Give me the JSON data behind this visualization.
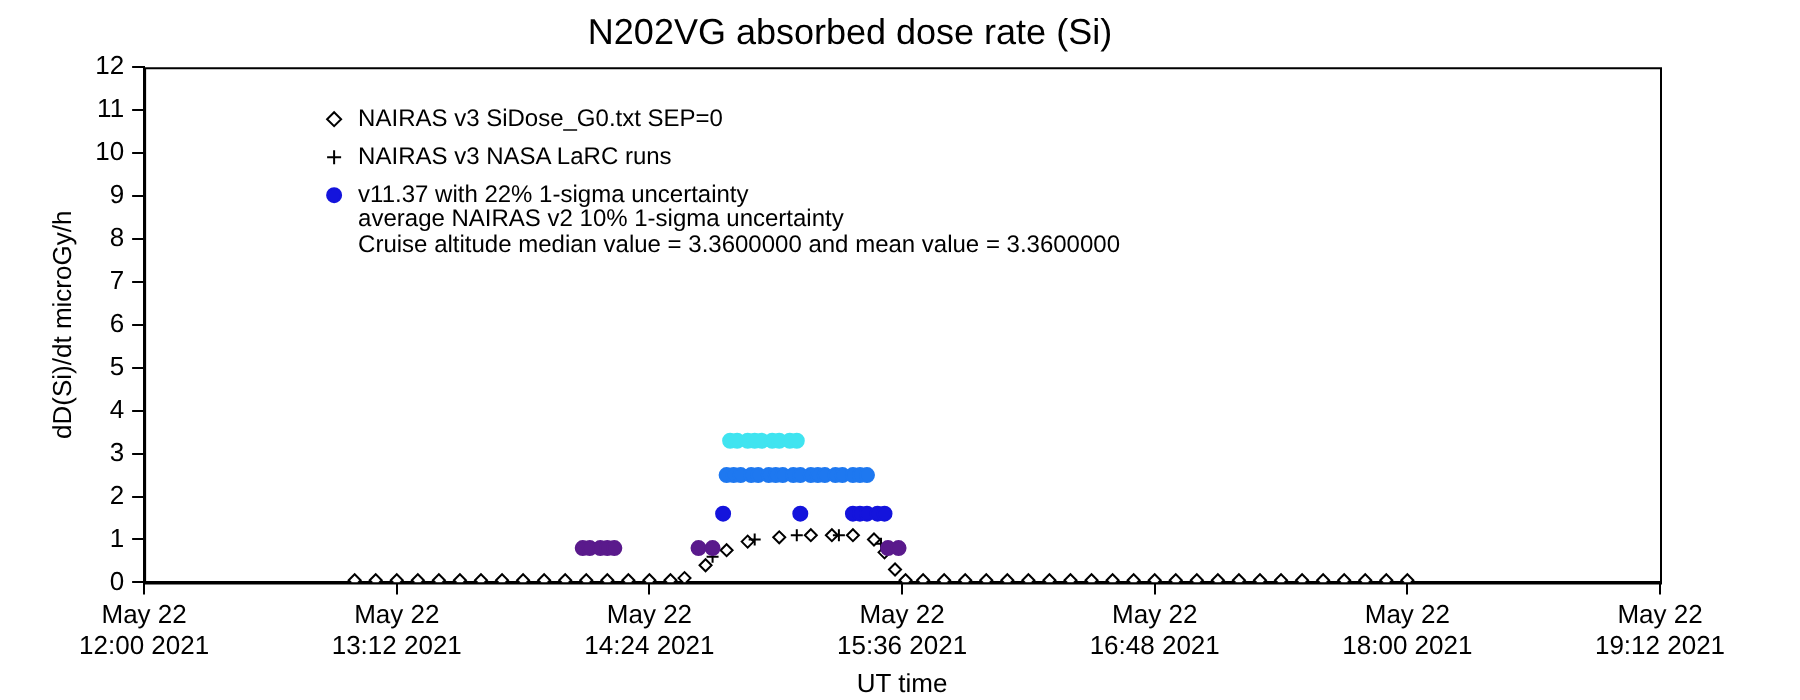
{
  "chart_data": {
    "type": "scatter",
    "title": "N202VG absorbed dose rate (Si)",
    "xlabel": "UT time",
    "ylabel": "dD(Si)/dt microGy/h",
    "xlim": [
      "2021-05-22T12:00",
      "2021-05-22T19:12"
    ],
    "xticks": [
      {
        "value": "2021-05-22T12:00",
        "label": "May 22\n12:00 2021"
      },
      {
        "value": "2021-05-22T13:12",
        "label": "May 22\n13:12 2021"
      },
      {
        "value": "2021-05-22T14:24",
        "label": "May 22\n14:24 2021"
      },
      {
        "value": "2021-05-22T15:36",
        "label": "May 22\n15:36 2021"
      },
      {
        "value": "2021-05-22T16:48",
        "label": "May 22\n16:48 2021"
      },
      {
        "value": "2021-05-22T18:00",
        "label": "May 22\n18:00 2021"
      },
      {
        "value": "2021-05-22T19:12",
        "label": "May 22\n19:12 2021"
      }
    ],
    "ylim": [
      0,
      12
    ],
    "yticks": [
      0,
      1,
      2,
      3,
      4,
      5,
      6,
      7,
      8,
      9,
      10,
      11,
      12
    ],
    "grid": false,
    "legend": "top left",
    "annotations": [
      "average NAIRAS v2 10% 1-sigma uncertainty",
      "Cruise altitude median value = 3.3600000 and mean value = 3.3600000"
    ],
    "series": [
      {
        "name": "NAIRAS v3 SiDose_G0.txt SEP=0",
        "color": "#000000",
        "marker": "diamond",
        "x": [
          "2021-05-22T13:00",
          "2021-05-22T13:06",
          "2021-05-22T13:12",
          "2021-05-22T13:18",
          "2021-05-22T13:24",
          "2021-05-22T13:30",
          "2021-05-22T13:36",
          "2021-05-22T13:42",
          "2021-05-22T13:48",
          "2021-05-22T13:54",
          "2021-05-22T14:00",
          "2021-05-22T14:06",
          "2021-05-22T14:12",
          "2021-05-22T14:18",
          "2021-05-22T14:24",
          "2021-05-22T14:30",
          "2021-05-22T14:34",
          "2021-05-22T14:40",
          "2021-05-22T14:46",
          "2021-05-22T14:52",
          "2021-05-22T15:01",
          "2021-05-22T15:10",
          "2021-05-22T15:16",
          "2021-05-22T15:22",
          "2021-05-22T15:28",
          "2021-05-22T15:31",
          "2021-05-22T15:34",
          "2021-05-22T15:37",
          "2021-05-22T15:42",
          "2021-05-22T15:48",
          "2021-05-22T15:54",
          "2021-05-22T16:00",
          "2021-05-22T16:06",
          "2021-05-22T16:12",
          "2021-05-22T16:18",
          "2021-05-22T16:24",
          "2021-05-22T16:30",
          "2021-05-22T16:36",
          "2021-05-22T16:42",
          "2021-05-22T16:48",
          "2021-05-22T16:54",
          "2021-05-22T17:00",
          "2021-05-22T17:06",
          "2021-05-22T17:12",
          "2021-05-22T17:18",
          "2021-05-22T17:24",
          "2021-05-22T17:30",
          "2021-05-22T17:36",
          "2021-05-22T17:42",
          "2021-05-22T17:48",
          "2021-05-22T17:54",
          "2021-05-22T18:00"
        ],
        "values": [
          0.05,
          0.05,
          0.05,
          0.05,
          0.05,
          0.05,
          0.05,
          0.05,
          0.05,
          0.05,
          0.05,
          0.05,
          0.05,
          0.05,
          0.05,
          0.05,
          0.1,
          0.4,
          0.75,
          0.95,
          1.05,
          1.1,
          1.1,
          1.1,
          1.0,
          0.7,
          0.3,
          0.05,
          0.05,
          0.05,
          0.05,
          0.05,
          0.05,
          0.05,
          0.05,
          0.05,
          0.05,
          0.05,
          0.05,
          0.05,
          0.05,
          0.05,
          0.05,
          0.05,
          0.05,
          0.05,
          0.05,
          0.05,
          0.05,
          0.05,
          0.05,
          0.05
        ]
      },
      {
        "name": "NAIRAS v3 NASA LaRC runs",
        "color": "#000000",
        "marker": "cross",
        "x": [
          "2021-05-22T14:42",
          "2021-05-22T14:54",
          "2021-05-22T15:06",
          "2021-05-22T15:18",
          "2021-05-22T15:30"
        ],
        "values": [
          0.6,
          1.0,
          1.1,
          1.1,
          0.9
        ]
      },
      {
        "name": "v11.37 with 22% 1-sigma uncertainty",
        "color": "#1414dc",
        "marker": "circle",
        "x": [
          "2021-05-22T14:05",
          "2021-05-22T14:07",
          "2021-05-22T14:10",
          "2021-05-22T14:12",
          "2021-05-22T14:14",
          "2021-05-22T14:38",
          "2021-05-22T14:42",
          "2021-05-22T15:32",
          "2021-05-22T15:35",
          "2021-05-22T14:45",
          "2021-05-22T15:07",
          "2021-05-22T15:22",
          "2021-05-22T15:24",
          "2021-05-22T15:26",
          "2021-05-22T15:29",
          "2021-05-22T15:31",
          "2021-05-22T14:46",
          "2021-05-22T14:48",
          "2021-05-22T14:50",
          "2021-05-22T14:53",
          "2021-05-22T14:55",
          "2021-05-22T14:58",
          "2021-05-22T15:00",
          "2021-05-22T15:02",
          "2021-05-22T15:05",
          "2021-05-22T15:07",
          "2021-05-22T15:10",
          "2021-05-22T15:12",
          "2021-05-22T15:14",
          "2021-05-22T15:17",
          "2021-05-22T15:19",
          "2021-05-22T15:22",
          "2021-05-22T15:24",
          "2021-05-22T15:26",
          "2021-05-22T14:47",
          "2021-05-22T14:49",
          "2021-05-22T14:52",
          "2021-05-22T14:54",
          "2021-05-22T14:56",
          "2021-05-22T14:59",
          "2021-05-22T15:01",
          "2021-05-22T15:04",
          "2021-05-22T15:06"
        ],
        "values": [
          0.8,
          0.8,
          0.8,
          0.8,
          0.8,
          0.8,
          0.8,
          0.8,
          0.8,
          1.6,
          1.6,
          1.6,
          1.6,
          1.6,
          1.6,
          1.6,
          2.5,
          2.5,
          2.5,
          2.5,
          2.5,
          2.5,
          2.5,
          2.5,
          2.5,
          2.5,
          2.5,
          2.5,
          2.5,
          2.5,
          2.5,
          2.5,
          2.5,
          2.5,
          3.3,
          3.3,
          3.3,
          3.3,
          3.3,
          3.3,
          3.3,
          3.3,
          3.3
        ],
        "colors": [
          "#5a1a8c",
          "#5a1a8c",
          "#5a1a8c",
          "#5a1a8c",
          "#5a1a8c",
          "#5a1a8c",
          "#5a1a8c",
          "#5a1a8c",
          "#5a1a8c",
          "#1414dc",
          "#1414dc",
          "#1414dc",
          "#1414dc",
          "#1414dc",
          "#1414dc",
          "#1414dc",
          "#1e78f0",
          "#1e78f0",
          "#1e78f0",
          "#1e78f0",
          "#1e78f0",
          "#1e78f0",
          "#1e78f0",
          "#1e78f0",
          "#1e78f0",
          "#1e78f0",
          "#1e78f0",
          "#1e78f0",
          "#1e78f0",
          "#1e78f0",
          "#1e78f0",
          "#1e78f0",
          "#1e78f0",
          "#1e78f0",
          "#40e4f0",
          "#40e4f0",
          "#40e4f0",
          "#40e4f0",
          "#40e4f0",
          "#40e4f0",
          "#40e4f0",
          "#40e4f0",
          "#40e4f0"
        ]
      }
    ]
  }
}
